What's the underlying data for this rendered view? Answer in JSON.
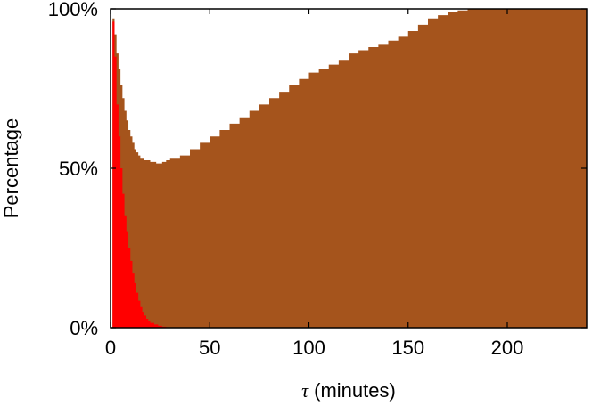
{
  "chart_data": {
    "type": "area",
    "title": "",
    "xlabel_symbol": "τ",
    "xlabel_rest": " (minutes)",
    "ylabel": "Percentage",
    "xlim": [
      0,
      240
    ],
    "ylim": [
      0,
      100
    ],
    "x_ticks": [
      {
        "value": 0,
        "label": "0"
      },
      {
        "value": 50,
        "label": "50"
      },
      {
        "value": 100,
        "label": "100"
      },
      {
        "value": 150,
        "label": "150"
      },
      {
        "value": 200,
        "label": "200"
      }
    ],
    "y_ticks": [
      {
        "value": 0,
        "label": "0%"
      },
      {
        "value": 50,
        "label": "50%"
      },
      {
        "value": 100,
        "label": "100%"
      }
    ],
    "grid": false,
    "legend": "none",
    "series": [
      {
        "color": "#a5541c",
        "points": [
          [
            0,
            0
          ],
          [
            1,
            97
          ],
          [
            2,
            92
          ],
          [
            3,
            86
          ],
          [
            4,
            81
          ],
          [
            5,
            76
          ],
          [
            6,
            72
          ],
          [
            7,
            68
          ],
          [
            8,
            65
          ],
          [
            9,
            62
          ],
          [
            10,
            60
          ],
          [
            11,
            58
          ],
          [
            12,
            56
          ],
          [
            13,
            55
          ],
          [
            14,
            54
          ],
          [
            15,
            53
          ],
          [
            17,
            52.5
          ],
          [
            20,
            52
          ],
          [
            23,
            51.5
          ],
          [
            26,
            52
          ],
          [
            28,
            52.5
          ],
          [
            30,
            53
          ],
          [
            35,
            54
          ],
          [
            40,
            56
          ],
          [
            45,
            58
          ],
          [
            50,
            60
          ],
          [
            55,
            62
          ],
          [
            60,
            64
          ],
          [
            65,
            66
          ],
          [
            70,
            68
          ],
          [
            75,
            70
          ],
          [
            80,
            72
          ],
          [
            85,
            74
          ],
          [
            90,
            76
          ],
          [
            95,
            78
          ],
          [
            100,
            80
          ],
          [
            105,
            81
          ],
          [
            110,
            82.5
          ],
          [
            115,
            84
          ],
          [
            120,
            86
          ],
          [
            125,
            87
          ],
          [
            130,
            88
          ],
          [
            135,
            89
          ],
          [
            140,
            90
          ],
          [
            145,
            91.5
          ],
          [
            150,
            93
          ],
          [
            155,
            95
          ],
          [
            160,
            97
          ],
          [
            165,
            98
          ],
          [
            170,
            99
          ],
          [
            175,
            99.5
          ],
          [
            180,
            100
          ],
          [
            240,
            100
          ]
        ]
      },
      {
        "color": "#ff0000",
        "points": [
          [
            0,
            0
          ],
          [
            1,
            96
          ],
          [
            2,
            85
          ],
          [
            3,
            70
          ],
          [
            4,
            60
          ],
          [
            5,
            50
          ],
          [
            6,
            42
          ],
          [
            7,
            35
          ],
          [
            8,
            30
          ],
          [
            9,
            25
          ],
          [
            10,
            21
          ],
          [
            11,
            17
          ],
          [
            12,
            14
          ],
          [
            13,
            11
          ],
          [
            14,
            8.5
          ],
          [
            15,
            6.5
          ],
          [
            16,
            5
          ],
          [
            17,
            3.8
          ],
          [
            18,
            2.8
          ],
          [
            19,
            2.1
          ],
          [
            20,
            1.5
          ],
          [
            22,
            1
          ],
          [
            24,
            0.6
          ],
          [
            26,
            0.3
          ],
          [
            28,
            0.1
          ],
          [
            30,
            0
          ]
        ]
      }
    ]
  }
}
